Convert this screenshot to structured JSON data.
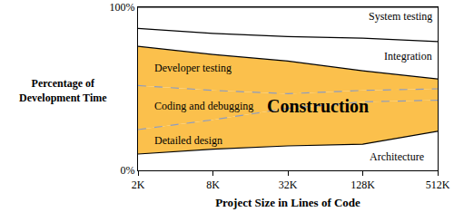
{
  "chart_data": {
    "type": "area",
    "stacked": true,
    "grid": false,
    "x_label": "Project Size in Lines of Code",
    "y_label": "Percentage of\nDevelopment Time",
    "categories": [
      "2K",
      "8K",
      "32K",
      "128K",
      "512K"
    ],
    "ylim": [
      0,
      100
    ],
    "yticks": [
      {
        "value": 0,
        "label": "0%"
      },
      {
        "value": 100,
        "label": "100%"
      }
    ],
    "series": [
      {
        "name": "Architecture",
        "color": "#ffffff",
        "line_style": "solid",
        "values": [
          10,
          13,
          15,
          16,
          24
        ]
      },
      {
        "name": "Detailed design",
        "color": "#fbc04c",
        "line_style": "dashed",
        "values": [
          15,
          18,
          23,
          26,
          19
        ]
      },
      {
        "name": "Coding and debugging",
        "color": "#fbc04c",
        "line_style": "dashed",
        "values": [
          27,
          18,
          9,
          7,
          7
        ]
      },
      {
        "name": "Developer testing",
        "color": "#fbc04c",
        "line_style": "solid",
        "values": [
          24,
          22,
          20,
          12,
          6
        ]
      },
      {
        "name": "Integration",
        "color": "#ffffff",
        "line_style": "solid",
        "values": [
          11,
          13,
          15,
          20,
          23
        ]
      },
      {
        "name": "System testing",
        "color": "#ffffff",
        "line_style": "solid",
        "values": [
          13,
          16,
          18,
          19,
          21
        ]
      }
    ],
    "annotations": [
      "Construction"
    ]
  }
}
